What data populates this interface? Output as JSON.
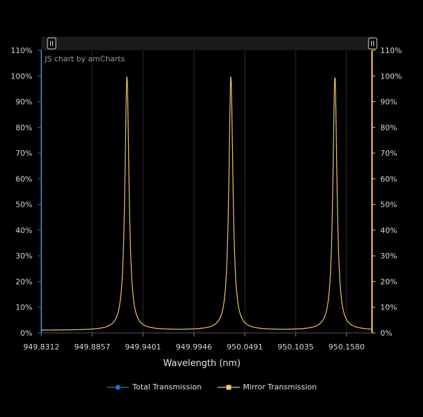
{
  "credit": "JS chart by amCharts",
  "colors": {
    "total": "#1f77d0",
    "mirror": "#f2c66d",
    "grid": "#2a2a2a",
    "scrollbar": "#1a1a1a"
  },
  "legend": {
    "total_label": "Total Transmission",
    "mirror_label": "Mirror Transmission"
  },
  "chart_data": {
    "type": "line",
    "title": "",
    "xlabel": "Wavelength (nm)",
    "ylabel": "",
    "ylim": [
      0,
      110
    ],
    "xlim": [
      949.8312,
      950.1853
    ],
    "x_tick_labels": [
      "949.8312",
      "949.8857",
      "949.9401",
      "949.9946",
      "950.0491",
      "950.1035",
      "950.1580"
    ],
    "x_tick_values": [
      949.8312,
      949.8857,
      949.9401,
      949.9946,
      950.0491,
      950.1035,
      950.158
    ],
    "y_tick_labels": [
      "0%",
      "10%",
      "20%",
      "30%",
      "40%",
      "50%",
      "60%",
      "70%",
      "80%",
      "90%",
      "100%",
      "110%"
    ],
    "y_tick_values": [
      0,
      10,
      20,
      30,
      40,
      50,
      60,
      70,
      80,
      90,
      100,
      110
    ],
    "grid": true,
    "legend_position": "bottom",
    "series": [
      {
        "name": "Mirror Transmission",
        "x_start": 949.8312,
        "x_end": 950.1853,
        "peaks": [
          949.9229,
          950.0342,
          950.1456
        ],
        "peak_value": 100,
        "baseline_value": 1.0,
        "peak_halfwidth": 0.0026
      },
      {
        "name": "Total Transmission",
        "values": []
      }
    ]
  }
}
